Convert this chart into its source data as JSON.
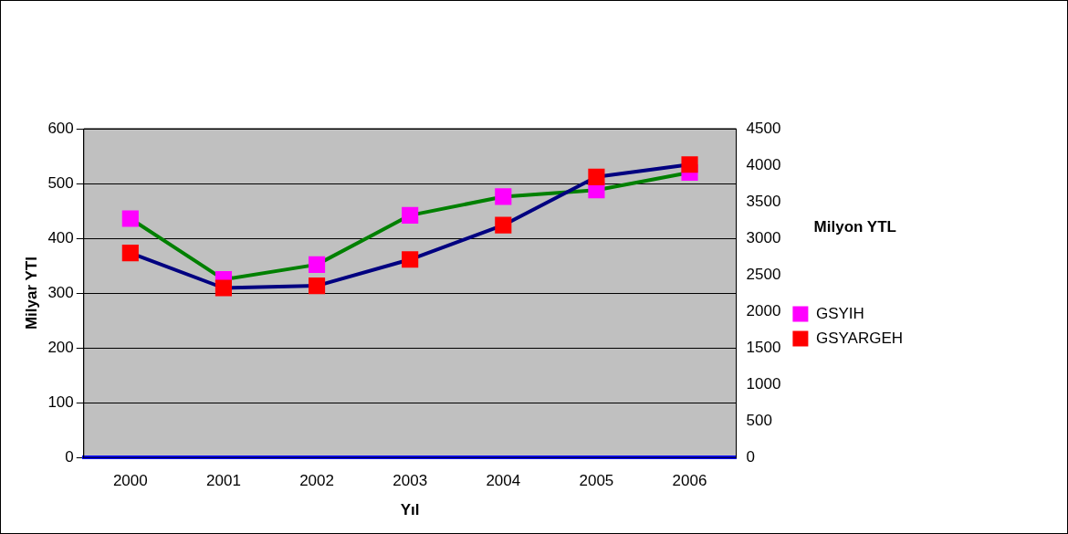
{
  "chart_data": {
    "type": "line",
    "xlabel": "Yıl",
    "ylabel": "Milyar YTl",
    "y2label": "Milyon YTL",
    "categories": [
      "2000",
      "2001",
      "2002",
      "2003",
      "2004",
      "2005",
      "2006"
    ],
    "series": [
      {
        "name": "GSYIH",
        "color": "#008000",
        "colors": [
          "#ff00ff",
          "#ff00ff",
          "#ff00ff",
          "#ff00ff",
          "#ff00ff",
          "#ff00ff",
          "#ff00ff"
        ],
        "values": [
          436,
          325,
          352,
          442,
          476,
          488,
          520
        ]
      },
      {
        "name": "GSYARGEH",
        "color": "#000080",
        "colors": [
          "#ff0000",
          "#ff0000",
          "#ff0000",
          "#ff0000",
          "#ff0000",
          "#ff0000",
          "#ff0000"
        ],
        "axis": "y2",
        "values": [
          2800,
          2320,
          2350,
          2710,
          3180,
          3840,
          4010
        ]
      }
    ],
    "ylim": [
      0,
      600
    ],
    "yticks": [
      0,
      100,
      200,
      300,
      400,
      500,
      600
    ],
    "y2lim": [
      0,
      4500
    ],
    "y2ticks": [
      0,
      500,
      1000,
      1500,
      2000,
      2500,
      3000,
      3500,
      4000,
      4500
    ],
    "grid": "y",
    "legend": "right",
    "marker": "square",
    "line_style": "solid"
  }
}
